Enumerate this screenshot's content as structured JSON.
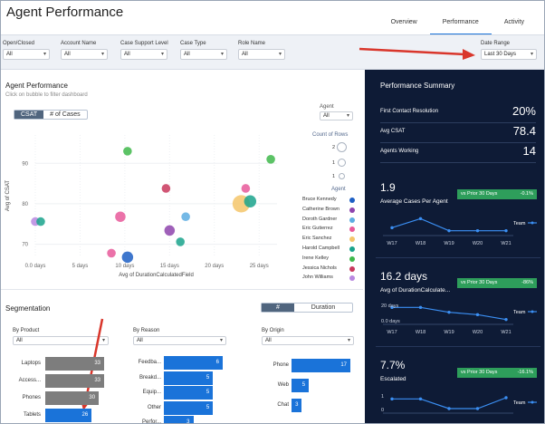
{
  "header": {
    "title": "Agent Performance",
    "tabs": [
      {
        "label": "Overview"
      },
      {
        "label": "Performance"
      },
      {
        "label": "Activity"
      }
    ]
  },
  "filters": [
    {
      "label": "Open/Closed",
      "value": "All"
    },
    {
      "label": "Account Name",
      "value": "All"
    },
    {
      "label": "Case Support Level",
      "value": "All"
    },
    {
      "label": "Case Type",
      "value": "All"
    },
    {
      "label": "Role Name",
      "value": "All"
    },
    {
      "label": "Date Range",
      "value": "Last 30 Days"
    }
  ],
  "agent_perf": {
    "title": "Agent Performance",
    "hint": "Click on bubble to filter dashboard",
    "toggle": [
      "CSAT",
      "# of Cases"
    ],
    "agent_filter": {
      "label": "Agent",
      "value": "All"
    },
    "count_of_rows": {
      "label": "Count of Rows",
      "values": [
        "2",
        "1",
        "1"
      ]
    },
    "legend_title": "Agent",
    "agents": [
      {
        "name": "Bruce Kennedy",
        "color": "#1d5fc4"
      },
      {
        "name": "Catherine Brown",
        "color": "#8e44ad"
      },
      {
        "name": "Doroth Gardner",
        "color": "#5dade2"
      },
      {
        "name": "Eric Gutierrez",
        "color": "#e8599a"
      },
      {
        "name": "Eric Sanchez",
        "color": "#f4c56a"
      },
      {
        "name": "Harold Campbell",
        "color": "#1aa38c"
      },
      {
        "name": "Irene Kelley",
        "color": "#3fb84b"
      },
      {
        "name": "Jessica Nichols",
        "color": "#c9385d"
      },
      {
        "name": "John Williams",
        "color": "#b988e0"
      }
    ]
  },
  "chart_data": {
    "type": "scatter",
    "title": "",
    "xlabel": "Avg of DurationCalculatedField",
    "ylabel": "Avg of CSAT",
    "xlim": [
      0,
      27
    ],
    "ylim": [
      67,
      97
    ],
    "x_ticks": [
      "0.0 days",
      "5 days",
      "10 days",
      "15 days",
      "20 days",
      "25 days"
    ],
    "x_tick_values": [
      0,
      5,
      10,
      15,
      20,
      25
    ],
    "y_ticks": [
      "70",
      "80",
      "90"
    ],
    "y_tick_values": [
      70,
      80,
      90
    ],
    "points": [
      {
        "x": 10.3,
        "y": 93.0,
        "size": 1,
        "color": "#3fb84b"
      },
      {
        "x": 26.3,
        "y": 91.0,
        "size": 1,
        "color": "#3fb84b"
      },
      {
        "x": 14.6,
        "y": 83.8,
        "size": 1,
        "color": "#c9385d"
      },
      {
        "x": 23.0,
        "y": 80.0,
        "size": 2,
        "color": "#f4c56a"
      },
      {
        "x": 24.0,
        "y": 80.6,
        "size": 1.4,
        "color": "#1aa38c"
      },
      {
        "x": 23.5,
        "y": 83.8,
        "size": 1,
        "color": "#e8599a"
      },
      {
        "x": 9.5,
        "y": 76.8,
        "size": 1.2,
        "color": "#e8599a"
      },
      {
        "x": 16.8,
        "y": 76.8,
        "size": 1,
        "color": "#5dade2"
      },
      {
        "x": 15.0,
        "y": 73.4,
        "size": 1.2,
        "color": "#8e44ad"
      },
      {
        "x": 16.2,
        "y": 70.6,
        "size": 1,
        "color": "#1aa38c"
      },
      {
        "x": 0.0,
        "y": 75.6,
        "size": 1,
        "color": "#b988e0"
      },
      {
        "x": 0.6,
        "y": 75.6,
        "size": 1,
        "color": "#1aa38c"
      },
      {
        "x": 10.3,
        "y": 66.8,
        "size": 1.3,
        "color": "#1d5fc4"
      },
      {
        "x": 8.5,
        "y": 67.8,
        "size": 1,
        "color": "#e8599a"
      }
    ]
  },
  "segmentation": {
    "title": "Segmentation",
    "toggle": [
      "#",
      "Duration"
    ],
    "by_product": {
      "label": "By Product",
      "value": "All",
      "categories": [
        "Laptops",
        "Access...",
        "Phones",
        "Tablets"
      ],
      "values": [
        33,
        33,
        30,
        26
      ]
    },
    "by_reason": {
      "label": "By Reason",
      "value": "All",
      "categories": [
        "Feedba...",
        "Breakd...",
        "Equip...",
        "Other",
        "Perfor..."
      ],
      "values": [
        6,
        5,
        5,
        5,
        3
      ]
    },
    "by_origin": {
      "label": "By Origin",
      "value": "All",
      "categories": [
        "Phone",
        "Web",
        "Chat"
      ],
      "values": [
        17,
        5,
        3
      ]
    }
  },
  "summary": {
    "title": "Performance Summary",
    "metrics": [
      {
        "label": "First Contact Resolution",
        "value": "20%"
      },
      {
        "label": "Avg CSAT",
        "value": "78.4"
      },
      {
        "label": "Agents Working",
        "value": "14"
      }
    ],
    "cards": [
      {
        "value": "1.9",
        "label": "Average Cases Per Agent",
        "badge_text": "vs Prior 30 Days",
        "badge_delta": "-0.1%",
        "legend": "Team",
        "weeks": [
          "W17",
          "W18",
          "W19",
          "W20",
          "W21"
        ],
        "y_ticks": [],
        "series": [
          2.0,
          2.3,
          1.9,
          1.9,
          1.9
        ]
      },
      {
        "value": "16.2 days",
        "label": "Avg of DurationCalculate...",
        "badge_text": "vs Prior 30 Days",
        "badge_delta": "-86%",
        "legend": "Team",
        "weeks": [
          "W17",
          "W18",
          "W19",
          "W20",
          "W21"
        ],
        "y_ticks": [
          "20 days",
          "0.0 days"
        ],
        "series": [
          22,
          22,
          14,
          10,
          2
        ]
      },
      {
        "value": "7.7%",
        "label": "Escalated",
        "badge_text": "vs Prior 30 Days",
        "badge_delta": "-16.1%",
        "legend": "Team",
        "weeks": [],
        "y_ticks": [
          "1",
          "0"
        ],
        "series": [
          0.9,
          0.9,
          0.5,
          0.5,
          0.95
        ]
      }
    ]
  }
}
